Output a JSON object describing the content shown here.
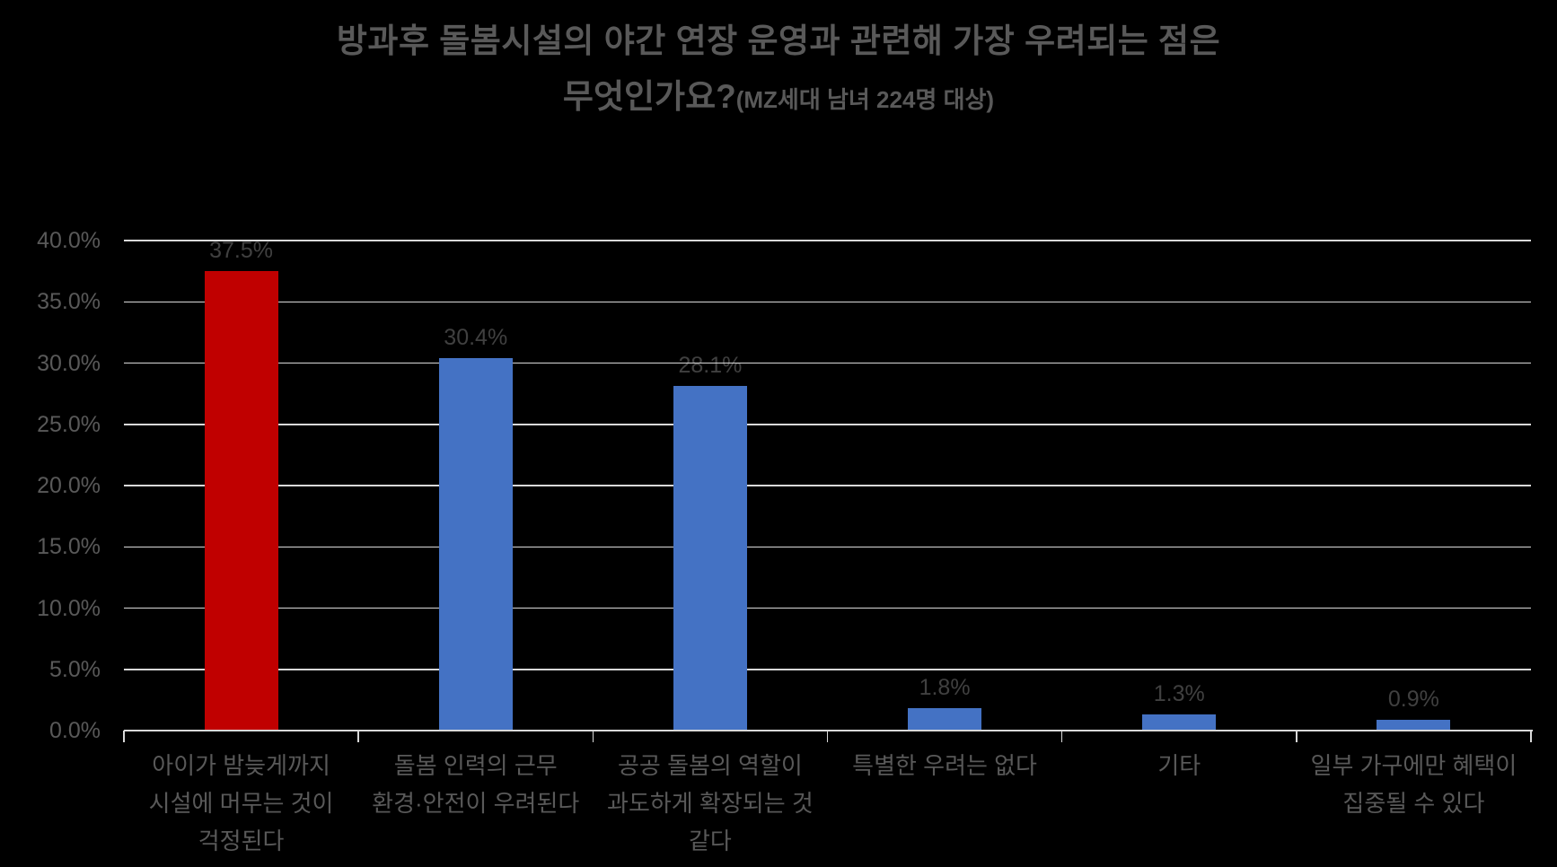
{
  "title": {
    "line1": "방과후 돌봄시설의 야간 연장 운영과 관련해 가장 우려되는 점은",
    "line2_main": "무엇인가요?",
    "line2_sub": "(MZ세대 남녀 224명 대상)"
  },
  "colors": {
    "background": "#000000",
    "title_text": "#595959",
    "axis_text": "#595959",
    "data_label_text": "#404040",
    "category_text": "#595959",
    "gridline": "#D9D9D9",
    "highlight_bar": "#C00000",
    "default_bar": "#4472C4"
  },
  "chart_data": {
    "type": "bar",
    "title": "방과후 돌봄시설의 야간 연장 운영과 관련해 가장 우려되는 점은 무엇인가요?(MZ세대 남녀 224명 대상)",
    "xlabel": "",
    "ylabel": "",
    "categories": [
      "아이가 밤늦게까지 시설에 머무는 것이 걱정된다",
      "돌봄 인력의 근무 환경·안전이 우려된다",
      "공공 돌봄의 역할이 과도하게 확장되는 것 같다",
      "특별한 우려는 없다",
      "기타",
      "일부 가구에만 혜택이 집중될 수 있다"
    ],
    "category_label_lines": [
      [
        "아이가 밤늦게까지",
        "시설에 머무는 것이",
        "걱정된다"
      ],
      [
        "돌봄 인력의 근무",
        "환경·안전이 우려된다"
      ],
      [
        "공공 돌봄의 역할이",
        "과도하게 확장되는 것",
        "같다"
      ],
      [
        "특별한 우려는 없다"
      ],
      [
        "기타"
      ],
      [
        "일부 가구에만 혜택이",
        "집중될 수 있다"
      ]
    ],
    "values": [
      37.5,
      30.4,
      28.1,
      1.8,
      1.3,
      0.9
    ],
    "data_labels": [
      "37.5%",
      "30.4%",
      "28.1%",
      "1.8%",
      "1.3%",
      "0.9%"
    ],
    "bar_colors": [
      "#C00000",
      "#4472C4",
      "#4472C4",
      "#4472C4",
      "#4472C4",
      "#4472C4"
    ],
    "y_axis": {
      "min": 0,
      "max": 40,
      "step": 5,
      "tick_labels": [
        "0.0%",
        "5.0%",
        "10.0%",
        "15.0%",
        "20.0%",
        "25.0%",
        "30.0%",
        "35.0%",
        "40.0%"
      ]
    },
    "grid": true,
    "legend": "none",
    "unit": "%"
  }
}
